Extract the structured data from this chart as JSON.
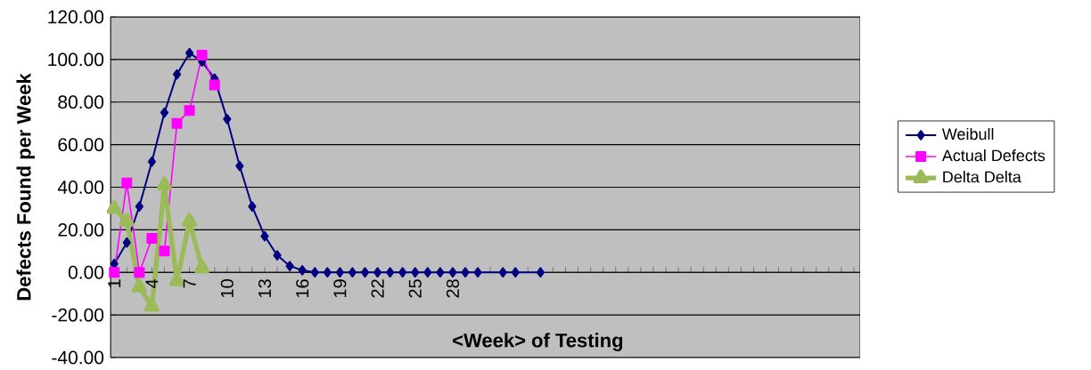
{
  "chart_data": {
    "type": "line",
    "xlabel": "<Week> of Testing",
    "ylabel": "Defects Found per Week",
    "categories": [
      "1",
      null,
      null,
      "4",
      null,
      null,
      "7",
      null,
      null,
      "10",
      null,
      null,
      "13",
      null,
      null,
      "16",
      null,
      null,
      "19",
      null,
      null,
      "22",
      null,
      null,
      "25",
      null,
      null,
      "28",
      null,
      null,
      null,
      null,
      null,
      null,
      null,
      null,
      null,
      null,
      null,
      null,
      null,
      null,
      null,
      null,
      null,
      null,
      null,
      null,
      null,
      null,
      null,
      null,
      null,
      null,
      null,
      null,
      null,
      null,
      null,
      null
    ],
    "series": [
      {
        "name": "Weibull",
        "color": "#000080",
        "marker": "diamond",
        "values": [
          4,
          14,
          31,
          52,
          75,
          93,
          103,
          99,
          91,
          72,
          50,
          31,
          17,
          8,
          3,
          1,
          0,
          0,
          0,
          0,
          0,
          0,
          0,
          0,
          0,
          0,
          0,
          0,
          0,
          0,
          null,
          0,
          0,
          null,
          0,
          null,
          null,
          null,
          null,
          null,
          null,
          null,
          null,
          null,
          null,
          null,
          null,
          null,
          null,
          null,
          null,
          null,
          null,
          null,
          null,
          null,
          null,
          null,
          null,
          null
        ]
      },
      {
        "name": "Actual Defects",
        "color": "#ff00ff",
        "marker": "square",
        "values": [
          0,
          42,
          0,
          16,
          10,
          70,
          76,
          102,
          88,
          null,
          null,
          null,
          null,
          null,
          null,
          null,
          null,
          null,
          null,
          null,
          null,
          null,
          null,
          null,
          null,
          null,
          null,
          null,
          null,
          null,
          null,
          null,
          null,
          null,
          null,
          null,
          null,
          null,
          null,
          null,
          null,
          null,
          null,
          null,
          null,
          null,
          null,
          null,
          null,
          null,
          null,
          null,
          null,
          null,
          null,
          null,
          null,
          null,
          null,
          null
        ]
      },
      {
        "name": "Delta Delta",
        "color": "#9bbb59",
        "marker": "triangle",
        "values": [
          30,
          24,
          -7,
          -16,
          41,
          -4,
          24,
          2,
          null,
          null,
          null,
          null,
          null,
          null,
          null,
          null,
          null,
          null,
          null,
          null,
          null,
          null,
          null,
          null,
          null,
          null,
          null,
          null,
          null,
          null,
          null,
          null,
          null,
          null,
          null,
          null,
          null,
          null,
          null,
          null,
          null,
          null,
          null,
          null,
          null,
          null,
          null,
          null,
          null,
          null,
          null,
          null,
          null,
          null,
          null,
          null,
          null,
          null,
          null,
          null
        ]
      }
    ],
    "ylim": [
      -40,
      120
    ],
    "yticks": [
      {
        "value": -40,
        "label": "-40.00"
      },
      {
        "value": -20,
        "label": "-20.00"
      },
      {
        "value": 0,
        "label": "0.00"
      },
      {
        "value": 20,
        "label": "20.00"
      },
      {
        "value": 40,
        "label": "40.00"
      },
      {
        "value": 60,
        "label": "60.00"
      },
      {
        "value": 80,
        "label": "80.00"
      },
      {
        "value": 100,
        "label": "100.00"
      },
      {
        "value": 120,
        "label": "120.00"
      }
    ],
    "grid": "y",
    "legend": "right"
  }
}
